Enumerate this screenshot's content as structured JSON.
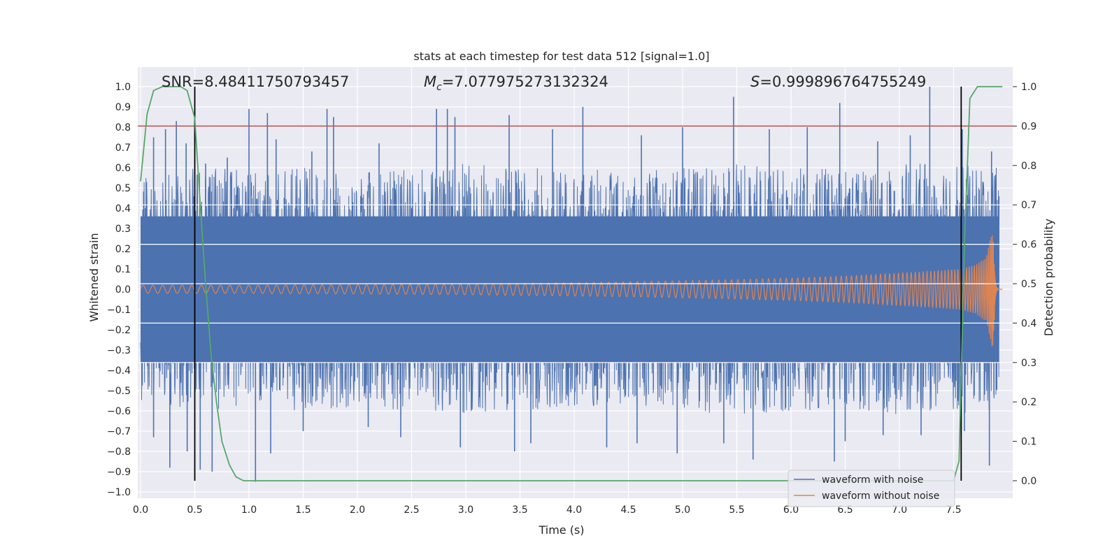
{
  "chart_data": {
    "type": "line",
    "title": "stats at each timestep for test data 512 [signal=1.0]",
    "xlabel": "Time (s)",
    "ylabel": "Whitened strain",
    "ylabel_right": "Detection probability",
    "xlim": [
      0.0,
      8.0
    ],
    "ylim": [
      -1.05,
      1.05
    ],
    "ylim_right": [
      -0.05,
      1.03
    ],
    "x_ticks": [
      "0.0",
      "0.5",
      "1.0",
      "1.5",
      "2.0",
      "2.5",
      "3.0",
      "3.5",
      "4.0",
      "4.5",
      "5.0",
      "5.5",
      "6.0",
      "6.5",
      "7.0",
      "7.5"
    ],
    "y_ticks": [
      "1.0",
      "0.9",
      "0.8",
      "0.7",
      "0.6",
      "0.5",
      "0.4",
      "0.3",
      "0.2",
      "0.1",
      "0.0",
      "−0.1",
      "−0.2",
      "−0.3",
      "−0.4",
      "−0.5",
      "−0.6",
      "−0.7",
      "−0.8",
      "−0.9",
      "−1.0"
    ],
    "y_right_ticks": [
      "1.0",
      "0.9",
      "0.8",
      "0.7",
      "0.6",
      "0.5",
      "0.4",
      "0.3",
      "0.2",
      "0.1",
      "0.0"
    ],
    "annotations": {
      "snr": "SNR=8.48411750793457",
      "mc_symbol": "M",
      "mc_sub": "c",
      "mc_value": "=7.077975273132324",
      "s_symbol": "S",
      "s_value": "=0.999896764755249"
    },
    "series": [
      {
        "name": "waveform with noise",
        "color": "#4c72b0",
        "envelope_x": [
          0.0,
          0.5,
          1.0,
          1.5,
          2.0,
          2.5,
          3.0,
          3.5,
          4.0,
          4.5,
          5.0,
          5.5,
          6.0,
          6.5,
          7.0,
          7.5,
          7.9
        ],
        "envelope_hi": [
          0.55,
          0.6,
          0.6,
          0.6,
          0.58,
          0.6,
          0.62,
          0.6,
          0.6,
          0.58,
          0.6,
          0.62,
          0.6,
          0.6,
          0.62,
          0.62,
          0.6
        ],
        "envelope_lo": [
          -0.55,
          -0.6,
          -0.6,
          -0.6,
          -0.58,
          -0.6,
          -0.62,
          -0.6,
          -0.6,
          -0.58,
          -0.6,
          -0.62,
          -0.6,
          -0.6,
          -0.62,
          -0.62,
          -0.6
        ],
        "peaks_x": [
          0.12,
          0.23,
          0.33,
          0.42,
          0.6,
          0.8,
          1.0,
          1.17,
          1.25,
          1.58,
          1.72,
          1.78,
          2.2,
          2.73,
          2.83,
          2.9,
          3.4,
          3.8,
          4.08,
          4.62,
          5.0,
          5.47,
          5.8,
          6.15,
          6.45,
          6.8,
          7.1,
          7.28,
          7.58,
          7.85
        ],
        "peaks_y": [
          0.75,
          0.79,
          0.83,
          0.72,
          0.62,
          0.65,
          0.89,
          0.87,
          0.74,
          0.68,
          0.89,
          0.85,
          0.72,
          0.89,
          0.89,
          0.85,
          0.86,
          0.79,
          0.9,
          0.76,
          0.8,
          0.95,
          0.79,
          0.8,
          0.92,
          0.73,
          0.76,
          1.0,
          0.79,
          0.68
        ],
        "troughs_x": [
          0.12,
          0.27,
          0.43,
          0.55,
          0.66,
          1.06,
          1.2,
          1.5,
          2.1,
          2.4,
          2.95,
          3.45,
          3.6,
          4.3,
          4.58,
          4.95,
          5.38,
          5.65,
          6.4,
          6.5,
          6.85,
          7.2,
          7.6,
          7.83
        ],
        "troughs_y": [
          -0.73,
          -0.88,
          -0.8,
          -0.89,
          -0.9,
          -0.95,
          -0.81,
          -0.7,
          -0.68,
          -0.73,
          -0.78,
          -0.8,
          -0.76,
          -0.78,
          -0.76,
          -0.81,
          -0.76,
          -0.84,
          -0.85,
          -0.75,
          -0.72,
          -0.72,
          -0.7,
          -0.87
        ]
      },
      {
        "name": "waveform without noise",
        "color": "#dd8452",
        "x": [
          0.0,
          0.5,
          1.0,
          1.5,
          2.0,
          2.5,
          3.0,
          3.5,
          4.0,
          4.5,
          5.0,
          5.5,
          6.0,
          6.5,
          7.0,
          7.3,
          7.55,
          7.7,
          7.8,
          7.86,
          7.88,
          7.92
        ],
        "amplitude": [
          0.02,
          0.02,
          0.02,
          0.022,
          0.023,
          0.025,
          0.027,
          0.03,
          0.033,
          0.037,
          0.042,
          0.048,
          0.055,
          0.065,
          0.08,
          0.09,
          0.1,
          0.12,
          0.16,
          0.3,
          0.12,
          0.0
        ]
      },
      {
        "name": "Detection probability",
        "axis": "right",
        "color": "#55a868",
        "x": [
          0.0,
          0.06,
          0.12,
          0.2,
          0.3,
          0.37,
          0.43,
          0.5,
          0.55,
          0.6,
          0.65,
          0.7,
          0.75,
          0.82,
          0.88,
          0.95,
          1.0,
          7.5,
          7.55,
          7.6,
          7.65,
          7.72,
          7.8,
          7.95
        ],
        "y": [
          0.76,
          0.93,
          0.99,
          1.0,
          1.0,
          1.0,
          0.99,
          0.92,
          0.7,
          0.5,
          0.32,
          0.2,
          0.1,
          0.04,
          0.01,
          0.0,
          0.0,
          0.0,
          0.05,
          0.6,
          0.97,
          1.0,
          1.0,
          1.0
        ]
      }
    ],
    "threshold_line": {
      "y_right": 0.9,
      "color": "#c44e52"
    },
    "vertical_lines": [
      {
        "x": 0.5
      },
      {
        "x": 7.57
      }
    ],
    "grid": true,
    "legend_position": "lower-right"
  }
}
